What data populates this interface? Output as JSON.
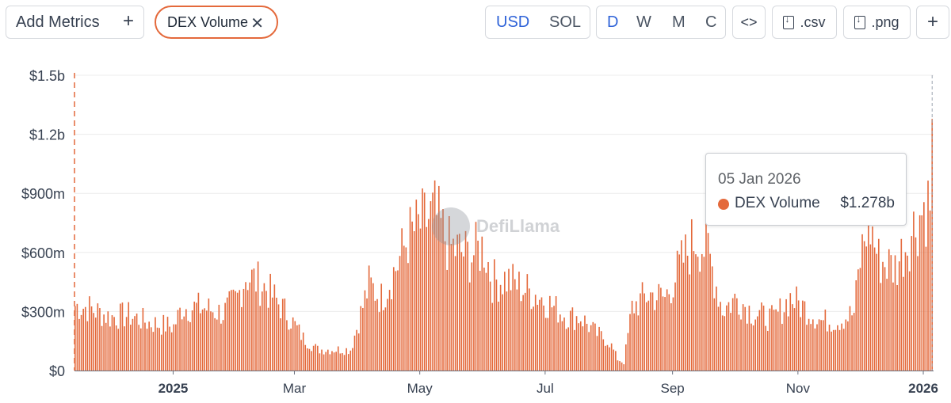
{
  "toolbar": {
    "add_metrics_label": "Add Metrics",
    "plus_symbol": "+",
    "metric_chip_label": "DEX Volume",
    "close_symbol": "✕",
    "currency_options": [
      "USD",
      "SOL"
    ],
    "currency_selected": "USD",
    "period_options": [
      "D",
      "W",
      "M",
      "C"
    ],
    "period_selected": "D",
    "embed_label": "<>",
    "csv_label": ".csv",
    "png_label": ".png",
    "more_label": "+"
  },
  "watermark": {
    "text": "DefiLlama"
  },
  "tooltip": {
    "date": "05 Jan 2026",
    "series": "DEX Volume",
    "value": "$1.278b"
  },
  "colors": {
    "bar": "#e4693b",
    "accent": "#2f63d8",
    "grid": "#ececec"
  },
  "chart_data": {
    "type": "bar",
    "title": "",
    "xlabel": "",
    "ylabel": "",
    "ylim": [
      0,
      1500
    ],
    "unit": "$m",
    "yticks": [
      "$0",
      "$300m",
      "$600m",
      "$900m",
      "$1.2b",
      "$1.5b"
    ],
    "ytick_values": [
      0,
      300,
      600,
      900,
      1200,
      1500
    ],
    "xticks": [
      "2025",
      "Mar",
      "May",
      "Jul",
      "Sep",
      "Nov",
      "2026"
    ],
    "xtick_bold": [
      true,
      false,
      false,
      false,
      false,
      false,
      true
    ],
    "x_start": "2024-11-14",
    "x_end": "2026-01-05",
    "series": [
      {
        "name": "DEX Volume",
        "anchors": [
          [
            "2024-11-14",
            340
          ],
          [
            "2024-11-20",
            330
          ],
          [
            "2024-12-01",
            280
          ],
          [
            "2024-12-10",
            290
          ],
          [
            "2024-12-20",
            250
          ],
          [
            "2025-01-01",
            230
          ],
          [
            "2025-01-05",
            330
          ],
          [
            "2025-01-15",
            330
          ],
          [
            "2025-01-25",
            300
          ],
          [
            "2025-02-01",
            380
          ],
          [
            "2025-02-05",
            500
          ],
          [
            "2025-02-10",
            470
          ],
          [
            "2025-02-15",
            430
          ],
          [
            "2025-02-25",
            300
          ],
          [
            "2025-03-05",
            170
          ],
          [
            "2025-03-12",
            110
          ],
          [
            "2025-03-20",
            110
          ],
          [
            "2025-03-28",
            110
          ],
          [
            "2025-04-01",
            260
          ],
          [
            "2025-04-06",
            450
          ],
          [
            "2025-04-12",
            380
          ],
          [
            "2025-04-20",
            560
          ],
          [
            "2025-04-25",
            700
          ],
          [
            "2025-05-01",
            760
          ],
          [
            "2025-05-08",
            820
          ],
          [
            "2025-05-15",
            650
          ],
          [
            "2025-05-25",
            600
          ],
          [
            "2025-06-01",
            650
          ],
          [
            "2025-06-05",
            470
          ],
          [
            "2025-06-12",
            480
          ],
          [
            "2025-06-20",
            430
          ],
          [
            "2025-06-28",
            390
          ],
          [
            "2025-07-05",
            330
          ],
          [
            "2025-07-12",
            280
          ],
          [
            "2025-07-18",
            280
          ],
          [
            "2025-07-25",
            200
          ],
          [
            "2025-08-01",
            150
          ],
          [
            "2025-08-05",
            60
          ],
          [
            "2025-08-08",
            40
          ],
          [
            "2025-08-12",
            330
          ],
          [
            "2025-08-20",
            400
          ],
          [
            "2025-08-28",
            380
          ],
          [
            "2025-09-05",
            560
          ],
          [
            "2025-09-12",
            700
          ],
          [
            "2025-09-18",
            620
          ],
          [
            "2025-09-25",
            320
          ],
          [
            "2025-10-02",
            380
          ],
          [
            "2025-10-10",
            300
          ],
          [
            "2025-10-20",
            270
          ],
          [
            "2025-10-28",
            380
          ],
          [
            "2025-11-05",
            320
          ],
          [
            "2025-11-12",
            260
          ],
          [
            "2025-11-20",
            260
          ],
          [
            "2025-11-28",
            300
          ],
          [
            "2025-12-01",
            580
          ],
          [
            "2025-12-05",
            800
          ],
          [
            "2025-12-10",
            580
          ],
          [
            "2025-12-18",
            540
          ],
          [
            "2025-12-25",
            700
          ],
          [
            "2026-01-01",
            860
          ],
          [
            "2026-01-04",
            870
          ],
          [
            "2026-01-05",
            1278
          ]
        ]
      }
    ]
  }
}
